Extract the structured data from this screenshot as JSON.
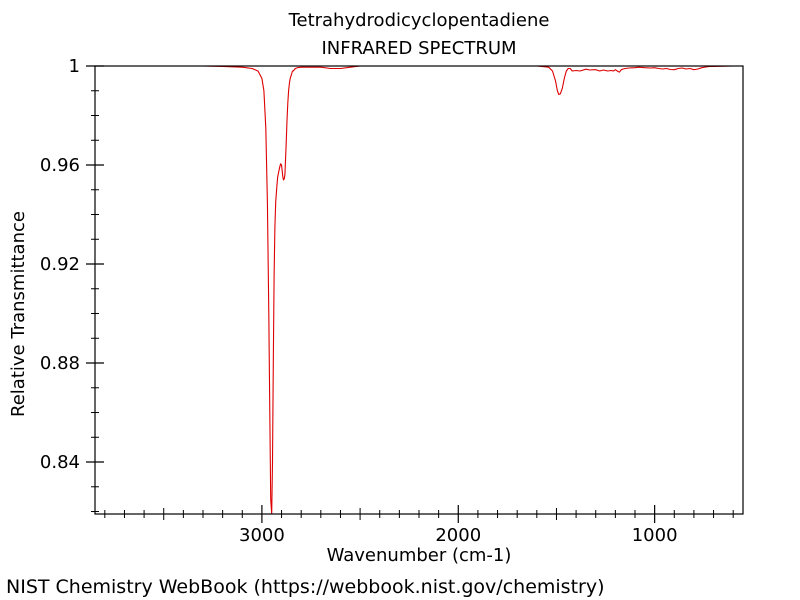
{
  "chart_data": {
    "type": "line",
    "title": "Tetrahydrodicyclopentadiene",
    "subtitle": "INFRARED SPECTRUM",
    "xlabel": "Wavenumber (cm-1)",
    "ylabel": "Relative Transmittance",
    "xlim": [
      3850,
      550
    ],
    "ylim": [
      0.819,
      1.0
    ],
    "x_ticks": [
      3000,
      2000,
      1000
    ],
    "x_tick_labels": [
      "3000",
      "2000",
      "1000"
    ],
    "y_ticks": [
      1.0,
      0.96,
      0.92,
      0.88,
      0.84
    ],
    "y_tick_labels": [
      "1",
      "0.96",
      "0.92",
      "0.88",
      "0.84"
    ],
    "grid": false,
    "line_color": "#dd0000",
    "series": [
      {
        "x": [
          3850,
          3700,
          3500,
          3300,
          3200,
          3100,
          3050,
          3020,
          3000,
          2990,
          2980,
          2972,
          2965,
          2960,
          2955,
          2950,
          2946,
          2942,
          2938,
          2934,
          2930,
          2925,
          2920,
          2915,
          2910,
          2905,
          2900,
          2897,
          2893,
          2890,
          2886,
          2883,
          2880,
          2876,
          2872,
          2868,
          2864,
          2860,
          2856,
          2852,
          2848,
          2844,
          2840,
          2830,
          2820,
          2800,
          2780,
          2750,
          2700,
          2650,
          2600,
          2550,
          2500,
          2400,
          2300,
          2200,
          2100,
          2000,
          1900,
          1800,
          1700,
          1600,
          1540,
          1520,
          1505,
          1495,
          1488,
          1480,
          1470,
          1460,
          1450,
          1440,
          1430,
          1420,
          1400,
          1380,
          1350,
          1330,
          1310,
          1300,
          1280,
          1260,
          1240,
          1220,
          1210,
          1200,
          1190,
          1180,
          1170,
          1160,
          1150,
          1130,
          1100,
          1080,
          1050,
          1020,
          1000,
          980,
          960,
          940,
          920,
          900,
          880,
          860,
          840,
          820,
          800,
          780,
          760,
          740,
          720,
          700,
          650,
          600,
          550
        ],
        "y": [
          1.0,
          1.0,
          1.0,
          1.0,
          0.9998,
          0.9995,
          0.999,
          0.998,
          0.995,
          0.99,
          0.975,
          0.945,
          0.9,
          0.86,
          0.825,
          0.819,
          0.84,
          0.88,
          0.915,
          0.935,
          0.945,
          0.95,
          0.955,
          0.957,
          0.959,
          0.9605,
          0.96,
          0.958,
          0.955,
          0.954,
          0.9545,
          0.956,
          0.962,
          0.97,
          0.978,
          0.985,
          0.99,
          0.993,
          0.995,
          0.996,
          0.997,
          0.998,
          0.998,
          0.999,
          0.9993,
          0.9995,
          0.9995,
          0.9995,
          0.9995,
          0.999,
          0.999,
          0.9995,
          1.0,
          1.0,
          1.0,
          1.0,
          1.0,
          1.0,
          1.0,
          1.0,
          1.0,
          1.0,
          0.9995,
          0.998,
          0.994,
          0.99,
          0.9885,
          0.9888,
          0.991,
          0.995,
          0.998,
          0.999,
          0.999,
          0.998,
          0.9982,
          0.998,
          0.9987,
          0.9984,
          0.9985,
          0.9985,
          0.998,
          0.9984,
          0.998,
          0.9982,
          0.998,
          0.9985,
          0.998,
          0.9975,
          0.9985,
          0.9988,
          0.999,
          0.9992,
          0.9993,
          0.9995,
          0.9993,
          0.9992,
          0.9993,
          0.999,
          0.9988,
          0.999,
          0.9986,
          0.9985,
          0.999,
          0.9992,
          0.9988,
          0.999,
          0.9985,
          0.9988,
          0.9993,
          0.9996,
          0.9998,
          0.9998,
          0.9999,
          1.0,
          1.0
        ]
      }
    ]
  },
  "footer": {
    "credit": "NIST Chemistry WebBook (https://webbook.nist.gov/chemistry)"
  }
}
